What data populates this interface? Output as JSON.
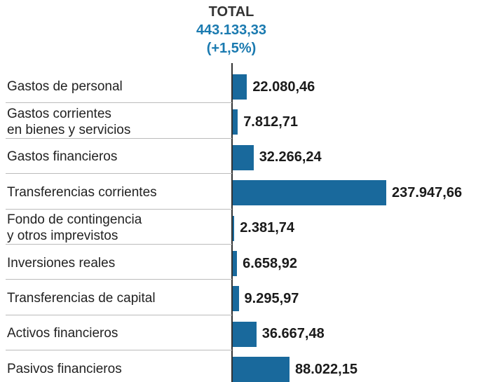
{
  "chart_data": {
    "type": "bar",
    "orientation": "horizontal",
    "title": "TOTAL",
    "subtitle": "443.133,33",
    "change": "(+1,5%)",
    "color": "#19699c",
    "categories": [
      "Gastos de personal",
      "Gastos corrientes\nen bienes y servicios",
      "Gastos financieros",
      "Transferencias corrientes",
      "Fondo de contingencia\ny otros imprevistos",
      "Inversiones reales",
      "Transferencias de capital",
      "Activos financieros",
      "Pasivos financieros"
    ],
    "values": [
      22080.46,
      7812.71,
      32266.24,
      237947.66,
      2381.74,
      6658.92,
      9295.97,
      36667.48,
      88022.15
    ],
    "value_labels": [
      "22.080,46",
      "7.812,71",
      "32.266,24",
      "237.947,66",
      "2.381,74",
      "6.658,92",
      "9.295,97",
      "36.667,48",
      "88.022,15"
    ]
  }
}
